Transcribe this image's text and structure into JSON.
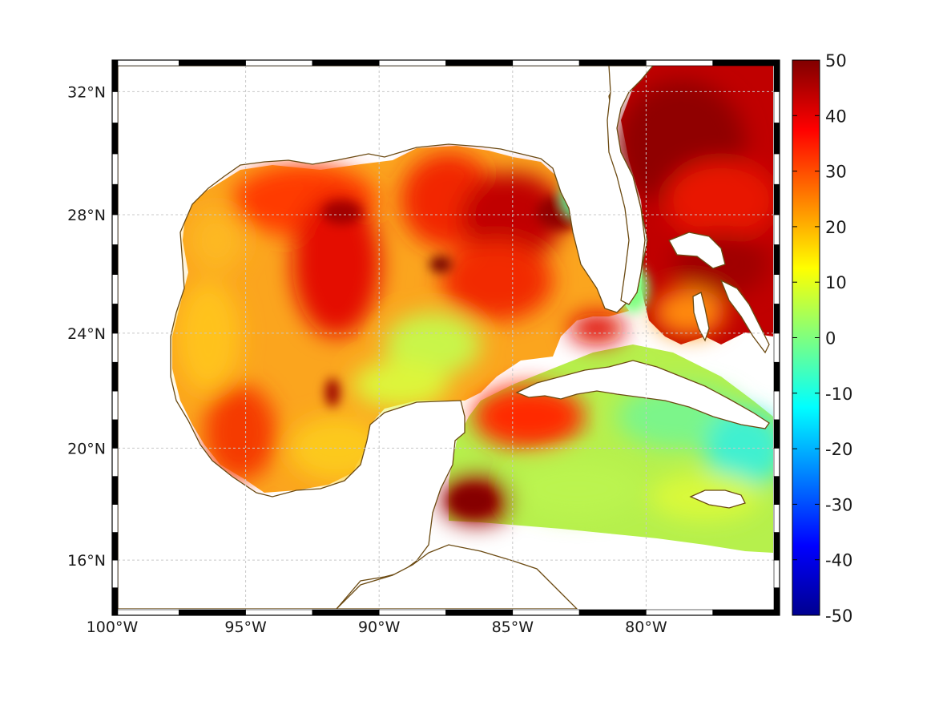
{
  "map": {
    "projection": "mercator",
    "lon_range": [
      -100,
      -75
    ],
    "lat_range": [
      14,
      33
    ],
    "lon_ticks": [
      {
        "value": -100,
        "label": "100°W"
      },
      {
        "value": -95,
        "label": "95°W"
      },
      {
        "value": -90,
        "label": "90°W"
      },
      {
        "value": -85,
        "label": "85°W"
      },
      {
        "value": -80,
        "label": "80°W"
      }
    ],
    "lat_ticks": [
      {
        "value": 32,
        "label": "32°N"
      },
      {
        "value": 28,
        "label": "28°N"
      },
      {
        "value": 24,
        "label": "24°N"
      },
      {
        "value": 20,
        "label": "20°N"
      },
      {
        "value": 16,
        "label": "16°N"
      }
    ],
    "grid": true,
    "frame": "black-white checkered border",
    "coastline_color": "#6b4a12",
    "land_color": "#ffffff",
    "field_colormap": "jet"
  },
  "colorbar": {
    "range": [
      -50,
      50
    ],
    "ticks": [
      "50",
      "40",
      "30",
      "20",
      "10",
      "0",
      "-10",
      "-20",
      "-30",
      "-40",
      "-50"
    ],
    "placement": "right"
  }
}
